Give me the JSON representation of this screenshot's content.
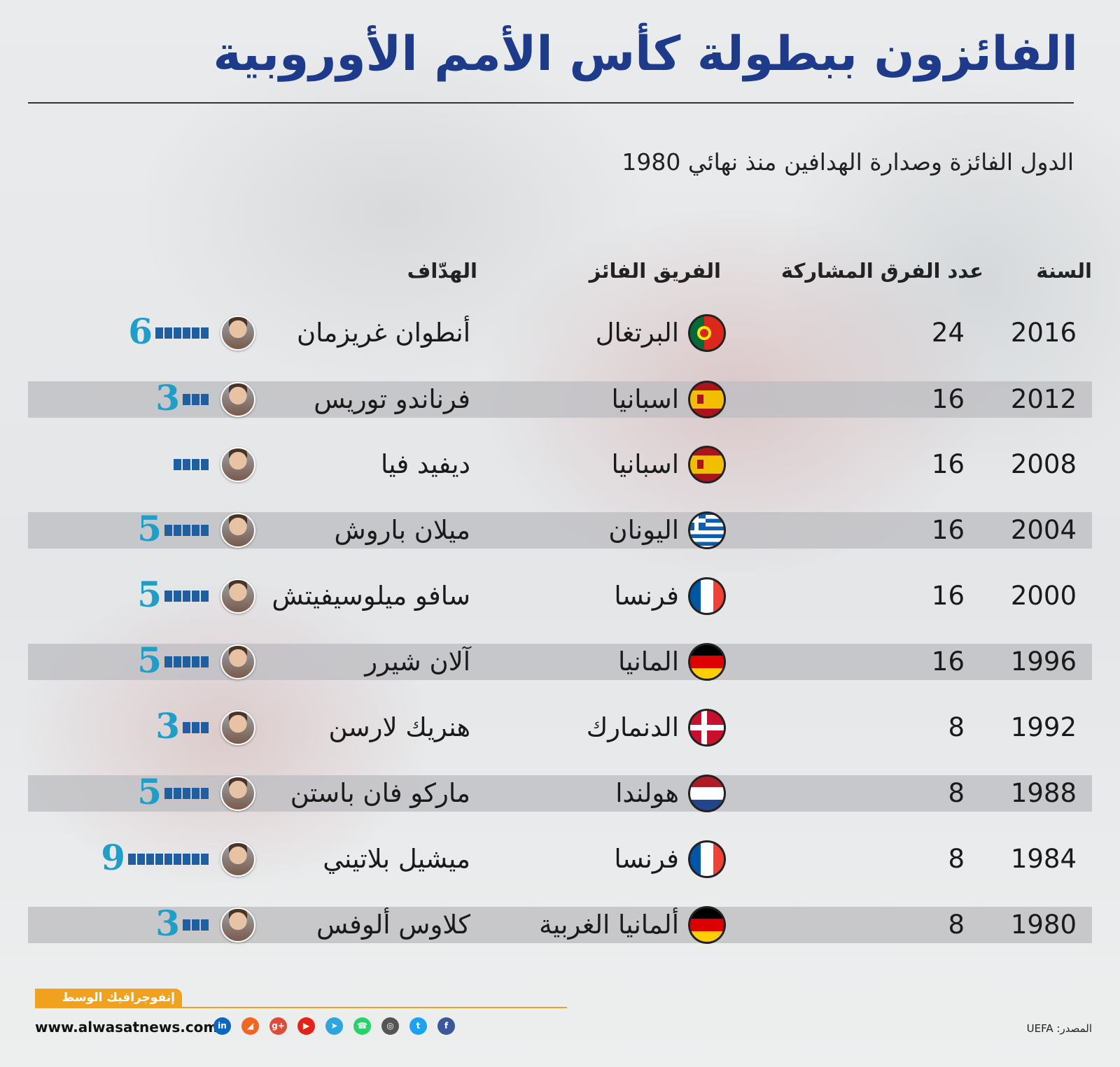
{
  "title": "الفائزون ببطولة كأس الأمم الأوروبية",
  "subtitle": "الدول الفائزة وصدارة الهدافين منذ نهائي 1980",
  "columns": {
    "year": "السنة",
    "count": "عدد الفرق المشاركة",
    "team": "الفريق الفائز",
    "scorer": "الهدّاف"
  },
  "rows": [
    {
      "year": "2016",
      "count": "24",
      "team": "البرتغال",
      "scorer": "أنطوان غريزمان",
      "goals_label": "6",
      "goals": 6,
      "flag": "portugal"
    },
    {
      "year": "2012",
      "count": "16",
      "team": "اسبانيا",
      "scorer": "فرناندو توريس",
      "goals_label": "3",
      "goals": 3,
      "flag": "spain"
    },
    {
      "year": "2008",
      "count": "16",
      "team": "اسبانيا",
      "scorer": "ديفيد فيا",
      "goals_label": "",
      "goals": 4,
      "flag": "spain"
    },
    {
      "year": "2004",
      "count": "16",
      "team": "اليونان",
      "scorer": "ميلان باروش",
      "goals_label": "5",
      "goals": 5,
      "flag": "greece"
    },
    {
      "year": "2000",
      "count": "16",
      "team": "فرنسا",
      "scorer": "سافو ميلوسيفيتش",
      "goals_label": "5",
      "goals": 5,
      "flag": "france"
    },
    {
      "year": "1996",
      "count": "16",
      "team": "المانيا",
      "scorer": "آلان شيرر",
      "goals_label": "5",
      "goals": 5,
      "flag": "germany"
    },
    {
      "year": "1992",
      "count": "8",
      "team": "الدنمارك",
      "scorer": "هنريك لارسن",
      "goals_label": "3",
      "goals": 3,
      "flag": "denmark"
    },
    {
      "year": "1988",
      "count": "8",
      "team": "هولندا",
      "scorer": "ماركو فان باستن",
      "goals_label": "5",
      "goals": 5,
      "flag": "netherlands"
    },
    {
      "year": "1984",
      "count": "8",
      "team": "فرنسا",
      "scorer": "ميشيل بلاتيني",
      "goals_label": "9",
      "goals": 9,
      "flag": "france"
    },
    {
      "year": "1980",
      "count": "8",
      "team": "ألمانيا الغربية",
      "scorer": "كلاوس ألوفس",
      "goals_label": "3",
      "goals": 3,
      "flag": "germany"
    }
  ],
  "colors": {
    "title": "#1e3a8a",
    "bars": "#1d5fa0",
    "goals": "#1f9ec8",
    "accent": "#f0a21e"
  },
  "footer": {
    "brand": "إنفوجرافيك الوسط",
    "website": "www.alwasatnews.com",
    "source": "المصدر: UEFA",
    "social_icons": [
      "linkedin-icon",
      "rss-icon",
      "google-plus-icon",
      "youtube-icon",
      "telegram-icon",
      "whatsapp-icon",
      "instagram-icon",
      "twitter-icon",
      "facebook-icon"
    ]
  }
}
